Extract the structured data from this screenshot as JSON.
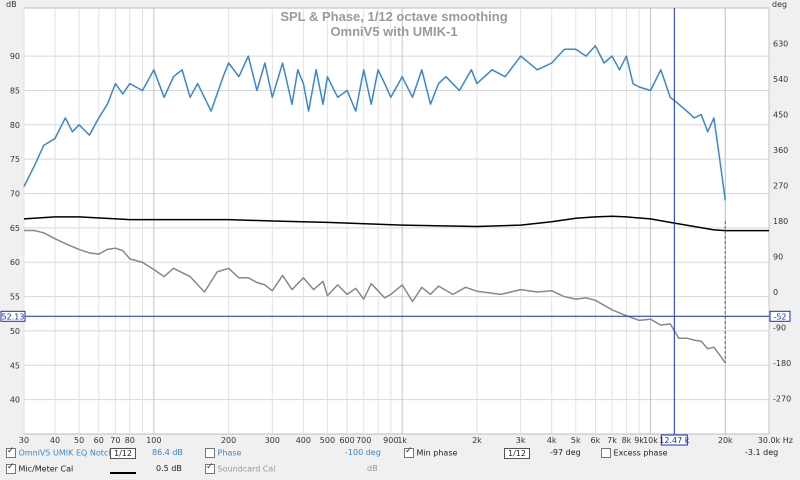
{
  "chart_data": {
    "type": "line",
    "title": "SPL & Phase, 1/12 octave smoothing",
    "subtitle": "OmniV5 with UMIK-1",
    "y_unit_left": "dB",
    "y_unit_right": "deg",
    "x_unit": "Hz",
    "x_scale": "log",
    "xlim": [
      30,
      30000
    ],
    "ylim_left": [
      35,
      97
    ],
    "ylim_right": [
      -360,
      720
    ],
    "grid": true,
    "x_ticks": [
      {
        "v": 30,
        "t": "30"
      },
      {
        "v": 40,
        "t": "40"
      },
      {
        "v": 50,
        "t": "50"
      },
      {
        "v": 60,
        "t": "60"
      },
      {
        "v": 70,
        "t": "70"
      },
      {
        "v": 80,
        "t": "80"
      },
      {
        "v": 100,
        "t": "100"
      },
      {
        "v": 200,
        "t": "200"
      },
      {
        "v": 300,
        "t": "300"
      },
      {
        "v": 400,
        "t": "400"
      },
      {
        "v": 500,
        "t": "500"
      },
      {
        "v": 600,
        "t": "600"
      },
      {
        "v": 700,
        "t": "700"
      },
      {
        "v": 900,
        "t": "900"
      },
      {
        "v": 1000,
        "t": "1k"
      },
      {
        "v": 2000,
        "t": "2k"
      },
      {
        "v": 3000,
        "t": "3k"
      },
      {
        "v": 4000,
        "t": "4k"
      },
      {
        "v": 5000,
        "t": "5k"
      },
      {
        "v": 6000,
        "t": "6k"
      },
      {
        "v": 7000,
        "t": "7k"
      },
      {
        "v": 8000,
        "t": "8k"
      },
      {
        "v": 9000,
        "t": "9k"
      },
      {
        "v": 10000,
        "t": "10k"
      },
      {
        "v": 20000,
        "t": "20k"
      },
      {
        "v": 30000,
        "t": "30.0k Hz"
      }
    ],
    "y_ticks_left": [
      40,
      45,
      50,
      55,
      60,
      65,
      70,
      75,
      80,
      85,
      90
    ],
    "y_ticks_right": [
      630,
      540,
      450,
      360,
      270,
      180,
      90,
      0,
      -90,
      -180,
      -270
    ],
    "cursor": {
      "x": 12470,
      "x_label": "12.47 k",
      "y": 52.13,
      "y_label": "52.13",
      "y_label_right": "-52"
    },
    "series": [
      {
        "name": "OmniV5 UMIK EQ Notch",
        "color": "#3a88c8",
        "x": [
          30,
          33,
          36,
          40,
          44,
          47,
          50,
          55,
          60,
          65,
          70,
          75,
          80,
          90,
          100,
          110,
          120,
          130,
          140,
          150,
          170,
          190,
          200,
          220,
          240,
          260,
          280,
          300,
          330,
          360,
          380,
          400,
          420,
          450,
          480,
          500,
          550,
          600,
          650,
          700,
          750,
          800,
          850,
          900,
          1000,
          1100,
          1200,
          1300,
          1400,
          1500,
          1700,
          1900,
          2000,
          2300,
          2600,
          3000,
          3500,
          4000,
          4500,
          5000,
          5500,
          6000,
          6500,
          7000,
          7500,
          8000,
          8500,
          9000,
          10000,
          11000,
          12000,
          13000,
          14000,
          15000,
          16000,
          17000,
          18000,
          19000,
          20000
        ],
        "values": [
          71,
          74,
          77,
          78,
          81,
          79,
          80,
          78.5,
          81,
          83,
          86,
          84.5,
          86,
          85,
          88,
          84,
          87,
          88,
          84,
          86,
          82,
          87,
          89,
          87,
          90,
          85,
          89,
          84,
          89,
          83,
          88,
          86,
          82,
          88,
          83,
          87,
          84,
          85,
          82,
          88,
          83,
          88,
          86,
          84,
          87,
          84,
          88,
          83,
          86,
          87,
          85,
          88,
          86,
          88,
          87,
          90,
          88,
          89,
          91,
          91,
          90,
          91.5,
          89,
          90,
          88,
          90,
          86,
          85.5,
          85,
          88,
          84,
          83,
          82,
          81,
          81.5,
          79,
          81,
          75,
          69
        ]
      },
      {
        "name": "Mic/Meter Cal",
        "color": "#000000",
        "x": [
          30,
          40,
          50,
          80,
          100,
          200,
          300,
          500,
          1000,
          2000,
          3000,
          4000,
          5000,
          6000,
          7000,
          8000,
          10000,
          12000,
          15000,
          18000,
          20000,
          30000
        ],
        "values": [
          66.3,
          66.6,
          66.6,
          66.2,
          66.2,
          66.2,
          66.0,
          65.8,
          65.4,
          65.2,
          65.4,
          65.9,
          66.4,
          66.6,
          66.7,
          66.6,
          66.3,
          65.8,
          65.2,
          64.7,
          64.6,
          64.6
        ]
      },
      {
        "name": "Min phase",
        "color": "#888888",
        "axis": "right",
        "x": [
          30,
          33,
          36,
          40,
          45,
          50,
          55,
          60,
          65,
          70,
          75,
          80,
          90,
          100,
          110,
          120,
          140,
          160,
          180,
          200,
          220,
          240,
          260,
          280,
          300,
          330,
          360,
          400,
          440,
          480,
          500,
          550,
          600,
          650,
          700,
          750,
          800,
          850,
          900,
          1000,
          1100,
          1200,
          1300,
          1400,
          1600,
          1800,
          2000,
          2500,
          3000,
          3500,
          4000,
          4500,
          5000,
          5500,
          6000,
          7000,
          8000,
          9000,
          10000,
          11000,
          12000,
          13000,
          14000,
          15000,
          16000,
          17000,
          18000,
          19000,
          20000
        ],
        "values": [
          156,
          156,
          150,
          135,
          120,
          108,
          99,
          96,
          108,
          111,
          105,
          84,
          75,
          57,
          39,
          60,
          39,
          0,
          51,
          60,
          36,
          36,
          24,
          18,
          3,
          42,
          6,
          36,
          6,
          27,
          -9,
          18,
          -6,
          9,
          -18,
          21,
          3,
          -15,
          -6,
          18,
          -24,
          12,
          -6,
          15,
          -6,
          12,
          2,
          -6,
          6,
          0,
          3,
          -12,
          -18,
          -15,
          -21,
          -45,
          -60,
          -72,
          -69,
          -84,
          -81,
          -117,
          -117,
          -122,
          -125,
          -144,
          -140,
          -160,
          -180
        ]
      }
    ],
    "phase_marker": {
      "x": 20000,
      "from": 180,
      "to": -180
    }
  },
  "legend": {
    "row1": {
      "name": "OmniV5 UMIK EQ Notch",
      "smoothing": "1/12",
      "value": "86.4 dB",
      "phase_label": "Phase",
      "phase_value": "-100 deg",
      "minphase_label": "Min phase",
      "minphase_smoothing": "1/12",
      "minphase_value": "-97 deg",
      "excess_label": "Excess phase",
      "excess_value": "-3.1 deg"
    },
    "row2": {
      "name": "Mic/Meter Cal",
      "value": "0.5 dB",
      "soundcard_label": "Soundcard Cal",
      "soundcard_value": "dB"
    }
  }
}
